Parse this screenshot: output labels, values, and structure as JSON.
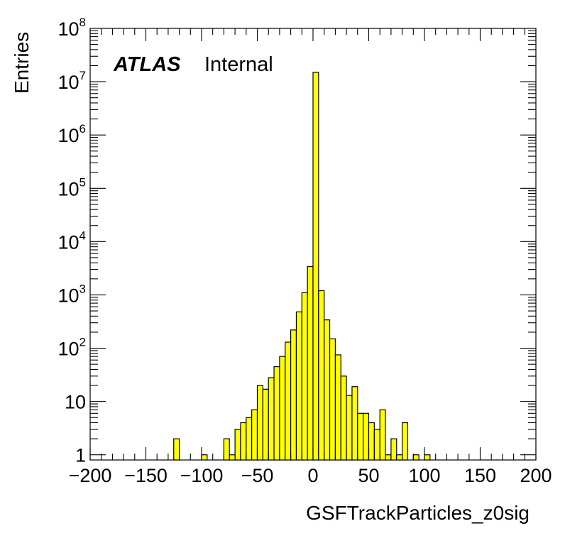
{
  "chart_data": {
    "type": "bar",
    "histogram": true,
    "bin_width": 5,
    "x_range": [
      -200,
      200
    ],
    "y_log": true,
    "y_range": [
      0.8,
      100000000
    ],
    "xlabel": "GSFTrackParticles_z0sig",
    "ylabel": "Entries",
    "label_bold": "ATLAS",
    "label_text": "Internal",
    "fill_color": "#ffff00",
    "line_color": "#000000",
    "x_ticks": [
      "−200",
      "−150",
      "−100",
      "−50",
      "0",
      "50",
      "100",
      "150",
      "200"
    ],
    "y_ticks": [
      {
        "base": "1",
        "exp": ""
      },
      {
        "base": "10",
        "exp": ""
      },
      {
        "base": "10",
        "exp": "2"
      },
      {
        "base": "10",
        "exp": "3"
      },
      {
        "base": "10",
        "exp": "4"
      },
      {
        "base": "10",
        "exp": "5"
      },
      {
        "base": "10",
        "exp": "6"
      },
      {
        "base": "10",
        "exp": "7"
      },
      {
        "base": "10",
        "exp": "8"
      }
    ],
    "bins": [
      {
        "low": -125,
        "value": 2
      },
      {
        "low": -100,
        "value": 1
      },
      {
        "low": -80,
        "value": 2
      },
      {
        "low": -75,
        "value": 1
      },
      {
        "low": -70,
        "value": 3
      },
      {
        "low": -65,
        "value": 4
      },
      {
        "low": -60,
        "value": 5
      },
      {
        "low": -55,
        "value": 7
      },
      {
        "low": -50,
        "value": 20
      },
      {
        "low": -45,
        "value": 17
      },
      {
        "low": -40,
        "value": 28
      },
      {
        "low": -35,
        "value": 45
      },
      {
        "low": -30,
        "value": 70
      },
      {
        "low": -25,
        "value": 130
      },
      {
        "low": -20,
        "value": 220
      },
      {
        "low": -15,
        "value": 480
      },
      {
        "low": -10,
        "value": 1100
      },
      {
        "low": -5,
        "value": 3400
      },
      {
        "low": 0,
        "value": 15000000
      },
      {
        "low": 5,
        "value": 1200
      },
      {
        "low": 10,
        "value": 340
      },
      {
        "low": 15,
        "value": 150
      },
      {
        "low": 20,
        "value": 75
      },
      {
        "low": 25,
        "value": 30
      },
      {
        "low": 30,
        "value": 13
      },
      {
        "low": 35,
        "value": 19
      },
      {
        "low": 40,
        "value": 6
      },
      {
        "low": 45,
        "value": 6
      },
      {
        "low": 50,
        "value": 4
      },
      {
        "low": 55,
        "value": 3
      },
      {
        "low": 60,
        "value": 7
      },
      {
        "low": 65,
        "value": 1
      },
      {
        "low": 70,
        "value": 2
      },
      {
        "low": 75,
        "value": 1
      },
      {
        "low": 80,
        "value": 4
      },
      {
        "low": 90,
        "value": 1
      },
      {
        "low": 100,
        "value": 1
      }
    ]
  }
}
